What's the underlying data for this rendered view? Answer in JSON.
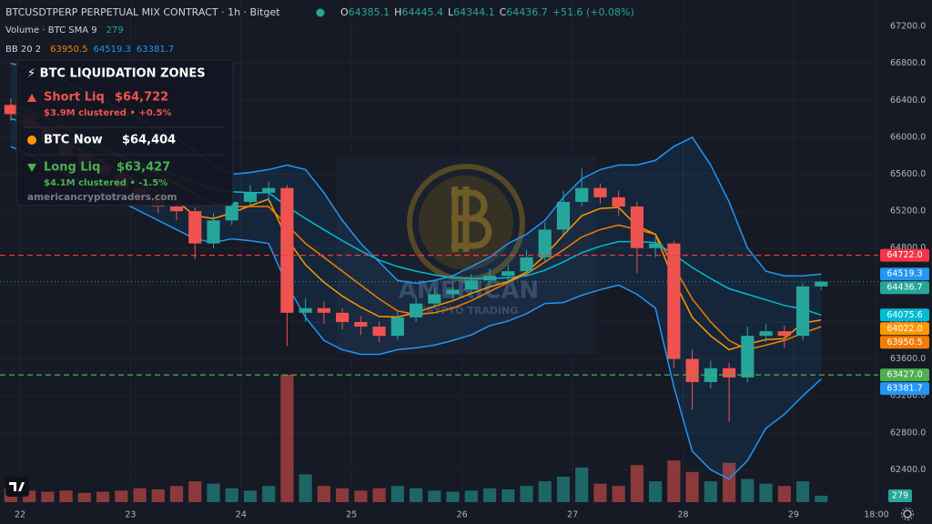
{
  "chart_data": {
    "type": "candlestick",
    "title": "BTCUSDTPERP PERPETUAL MIX CONTRACT · 1h · Bitget",
    "ohlc_letters": [
      "O",
      "H",
      "L",
      "C"
    ],
    "change": "+51.6 (+0.08%)",
    "volume_title": "Volume · BTC SMA 9",
    "bb_title": "BB 20 2",
    "up_color": "#26a69a",
    "down_color": "#ef5350",
    "x": [
      -2,
      2,
      6,
      10,
      14,
      18,
      22,
      26,
      30,
      34,
      38,
      42,
      46,
      50,
      54,
      58,
      62,
      66,
      70,
      74,
      78,
      82,
      86,
      90,
      94,
      98,
      102,
      106,
      110,
      114,
      118,
      122,
      126,
      130,
      134,
      138,
      142,
      146,
      150,
      154,
      158,
      162,
      166,
      170,
      174
    ],
    "open": [
      66350,
      66250,
      66100,
      65950,
      65800,
      65700,
      65600,
      65450,
      65350,
      65250,
      65200,
      64850,
      65100,
      65300,
      65400,
      65450,
      64100,
      64150,
      64100,
      64000,
      63950,
      63850,
      64050,
      64200,
      64300,
      64350,
      64450,
      64500,
      64550,
      64700,
      65000,
      65300,
      65450,
      65350,
      65250,
      64800,
      64850,
      63600,
      63350,
      63500,
      63400,
      63850,
      63900,
      63850,
      64385.1
    ],
    "high": [
      66420,
      66300,
      66150,
      66000,
      65880,
      65760,
      65650,
      65520,
      65420,
      65320,
      65240,
      65180,
      65380,
      65480,
      65520,
      65480,
      64260,
      64220,
      64150,
      64060,
      64000,
      64110,
      64260,
      64380,
      64420,
      64520,
      64580,
      64620,
      64780,
      65080,
      65420,
      65660,
      65500,
      65420,
      65300,
      64920,
      64880,
      63700,
      63580,
      63560,
      63950,
      63980,
      63960,
      64420,
      64445.4
    ],
    "low": [
      66180,
      66050,
      65880,
      65750,
      65640,
      65540,
      65400,
      65280,
      65180,
      65100,
      64680,
      64800,
      65050,
      65250,
      65300,
      63740,
      64000,
      63980,
      63920,
      63860,
      63780,
      63800,
      64000,
      64150,
      64250,
      64300,
      64380,
      64440,
      64500,
      64650,
      64950,
      65250,
      65280,
      65150,
      64530,
      64700,
      63500,
      63050,
      63280,
      62920,
      63350,
      63780,
      63720,
      63800,
      64344.1
    ],
    "close": [
      66250,
      66100,
      65950,
      65800,
      65700,
      65600,
      65450,
      65350,
      65250,
      65200,
      64850,
      65100,
      65300,
      65400,
      65450,
      64100,
      64150,
      64100,
      64000,
      63950,
      63850,
      64050,
      64200,
      64300,
      64350,
      64450,
      64500,
      64550,
      64700,
      65000,
      65300,
      65450,
      65350,
      65250,
      64800,
      64850,
      63600,
      63350,
      63500,
      63400,
      63850,
      63900,
      63850,
      64385.1,
      64436.7
    ],
    "volume": [
      600,
      500,
      450,
      500,
      400,
      450,
      500,
      600,
      550,
      700,
      900,
      800,
      600,
      500,
      700,
      5500,
      1200,
      700,
      600,
      500,
      600,
      700,
      600,
      500,
      450,
      500,
      600,
      550,
      700,
      900,
      1100,
      1500,
      800,
      700,
      1600,
      900,
      1800,
      1300,
      900,
      1700,
      1000,
      800,
      700,
      900,
      279
    ],
    "overlays": [
      {
        "color": "#2196f3",
        "values": [
          66800,
          66750,
          66700,
          66600,
          66500,
          66400,
          66300,
          66200,
          66100,
          66000,
          65850,
          65700,
          65600,
          65620,
          65650,
          65700,
          65650,
          65400,
          65100,
          64850,
          64650,
          64450,
          64420,
          64450,
          64500,
          64600,
          64700,
          64850,
          64950,
          65100,
          65350,
          65550,
          65650,
          65700,
          65700,
          65750,
          65900,
          66000,
          65700,
          65300,
          64800,
          64550,
          64500,
          64500,
          64519.3
        ]
      },
      {
        "color": "#2196f3",
        "values": [
          65900,
          65810,
          65700,
          65600,
          65500,
          65400,
          65300,
          65200,
          65100,
          65000,
          64900,
          64860,
          64900,
          64880,
          64850,
          64400,
          64050,
          63800,
          63700,
          63650,
          63650,
          63700,
          63720,
          63750,
          63800,
          63860,
          63960,
          64010,
          64090,
          64200,
          64210,
          64290,
          64350,
          64400,
          64300,
          64150,
          63300,
          62600,
          62400,
          62300,
          62500,
          62850,
          63000,
          63200,
          63381.7
        ]
      },
      {
        "color": "#f57c00",
        "values": [
          66350,
          66280,
          66200,
          66100,
          66000,
          65900,
          65800,
          65700,
          65600,
          65500,
          65380,
          65280,
          65250,
          65250,
          65250,
          65050,
          64850,
          64700,
          64550,
          64400,
          64250,
          64120,
          64080,
          64100,
          64150,
          64230,
          64330,
          64430,
          64520,
          64650,
          64780,
          64920,
          65000,
          65050,
          65000,
          64950,
          64600,
          64250,
          64000,
          63800,
          63700,
          63750,
          63800,
          63880,
          63950.5
        ]
      },
      {
        "color": "#00bcd4",
        "badge": "64075.6",
        "values": [
          66200,
          66150,
          66080,
          66000,
          65930,
          65860,
          65790,
          65720,
          65650,
          65590,
          65500,
          65440,
          65410,
          65400,
          65400,
          65250,
          65120,
          65000,
          64880,
          64770,
          64670,
          64600,
          64550,
          64510,
          64480,
          64470,
          64470,
          64480,
          64500,
          64560,
          64650,
          64750,
          64820,
          64870,
          64870,
          64860,
          64730,
          64590,
          64470,
          64360,
          64300,
          64240,
          64180,
          64140,
          64075.6
        ]
      },
      {
        "color": "#ff9800",
        "badge": "64022.0",
        "values": [
          66300,
          66200,
          66080,
          65950,
          65830,
          65730,
          65620,
          65500,
          65400,
          65310,
          65150,
          65120,
          65180,
          65260,
          65330,
          64900,
          64620,
          64430,
          64280,
          64160,
          64060,
          64055,
          64100,
          64170,
          64230,
          64310,
          64380,
          64440,
          64540,
          64720,
          64940,
          65150,
          65230,
          65240,
          65040,
          64950,
          64450,
          64050,
          63850,
          63700,
          63760,
          63810,
          63820,
          63990,
          64022
        ]
      }
    ],
    "levels": [
      {
        "value": 64722,
        "label": "64722.0",
        "color": "#f23645"
      },
      {
        "value": 63427,
        "label": "63427.0",
        "color": "#4caf50"
      }
    ],
    "xlim": [
      -4.35,
      186.4
    ],
    "xticks": [
      {
        "value": 0,
        "label": "22"
      },
      {
        "value": 24,
        "label": "23"
      },
      {
        "value": 48,
        "label": "24"
      },
      {
        "value": 72,
        "label": "25"
      },
      {
        "value": 96,
        "label": "26"
      },
      {
        "value": 120,
        "label": "27"
      },
      {
        "value": 144,
        "label": "28"
      },
      {
        "value": 168,
        "label": "29"
      },
      {
        "value": 186,
        "label": "18:00"
      }
    ],
    "ylim": [
      62020,
      67486
    ],
    "yticks": [
      {
        "value": 62400,
        "label": "62400.0"
      },
      {
        "value": 62800,
        "label": "62800.0"
      },
      {
        "value": 63200,
        "label": "63200.0"
      },
      {
        "value": 63600,
        "label": "63600.0"
      },
      {
        "value": 64000,
        "label": "64000.0"
      },
      {
        "value": 64400,
        "label": "64400.0"
      },
      {
        "value": 64800,
        "label": "64800.0"
      },
      {
        "value": 65200,
        "label": "65200.0"
      },
      {
        "value": 65600,
        "label": "65600.0"
      },
      {
        "value": 66000,
        "label": "66000.0"
      },
      {
        "value": 66400,
        "label": "66400.0"
      },
      {
        "value": 66800,
        "label": "66800.0"
      },
      {
        "value": 67200,
        "label": "67200.0"
      }
    ],
    "grid": true,
    "info_box": {
      "title": "⚡ BTC LIQUIDATION ZONES",
      "short_label": "Short Liq",
      "short_price": "$64,722",
      "short_note": "$3.9M clustered  •  +0.5%",
      "now_label": "BTC Now",
      "now_price": "$64,404",
      "long_label": "Long Liq",
      "long_price": "$63,427",
      "long_note": "$4.1M clustered  •  -1.5%",
      "site": "americancryptotraders.com"
    },
    "watermark": [
      "AMERICAN",
      "CRYPTO TRADING"
    ]
  }
}
